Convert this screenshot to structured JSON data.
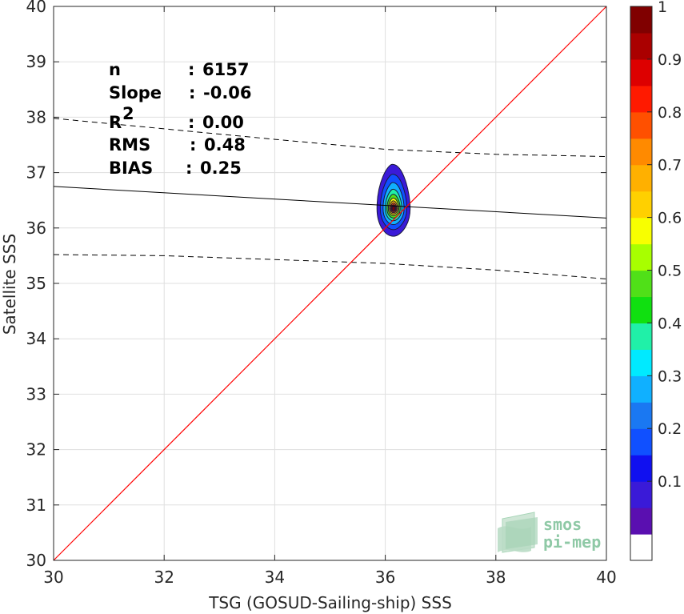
{
  "chart_data": {
    "type": "scatter",
    "subtype": "density-contour",
    "xlabel": "TSG (GOSUD-Sailing-ship) SSS",
    "ylabel": "Satellite SSS",
    "xlim": [
      30,
      40
    ],
    "ylim": [
      30,
      40
    ],
    "xticks": [
      "30",
      "32",
      "34",
      "36",
      "38",
      "40"
    ],
    "yticks": [
      "30",
      "31",
      "32",
      "33",
      "34",
      "35",
      "36",
      "37",
      "38",
      "39",
      "40"
    ],
    "grid": true,
    "stats": [
      {
        "label": "n",
        "sep": ": ",
        "value": "6157"
      },
      {
        "label": "Slope",
        "sep": ": ",
        "value": "-0.06"
      },
      {
        "label": "R",
        "sup": "2",
        "sep": ": ",
        "value": "0.00"
      },
      {
        "label": "RMS",
        "sep": ": ",
        "value": "0.48"
      },
      {
        "label": "BIAS",
        "sep": ": ",
        "value": "0.25"
      }
    ],
    "identity_line": {
      "color": "#ff0000",
      "points": [
        [
          30,
          30
        ],
        [
          40,
          40
        ]
      ]
    },
    "regression_line": {
      "color": "#000000",
      "points": [
        [
          30,
          36.75
        ],
        [
          40,
          36.18
        ]
      ]
    },
    "confidence_upper": {
      "style": "dashed",
      "points": [
        [
          30,
          37.98
        ],
        [
          32,
          37.79
        ],
        [
          34,
          37.6
        ],
        [
          36,
          37.42
        ],
        [
          38,
          37.33
        ],
        [
          40,
          37.29
        ]
      ]
    },
    "confidence_lower": {
      "style": "dashed",
      "points": [
        [
          30,
          35.52
        ],
        [
          32,
          35.5
        ],
        [
          34,
          35.43
        ],
        [
          36,
          35.36
        ],
        [
          38,
          35.24
        ],
        [
          40,
          35.08
        ]
      ]
    },
    "density_peak": {
      "x": 36.15,
      "y": 36.35
    },
    "contour_levels": [
      {
        "level": 0.05,
        "rx": 0.3,
        "ry_up": 0.8,
        "ry_down": 0.5
      },
      {
        "level": 0.15,
        "rx": 0.24,
        "ry_up": 0.62,
        "ry_down": 0.38
      },
      {
        "level": 0.25,
        "rx": 0.19,
        "ry_up": 0.47,
        "ry_down": 0.29
      },
      {
        "level": 0.35,
        "rx": 0.15,
        "ry_up": 0.35,
        "ry_down": 0.22
      },
      {
        "level": 0.45,
        "rx": 0.12,
        "ry_up": 0.26,
        "ry_down": 0.17
      },
      {
        "level": 0.55,
        "rx": 0.095,
        "ry_up": 0.19,
        "ry_down": 0.13
      },
      {
        "level": 0.65,
        "rx": 0.075,
        "ry_up": 0.14,
        "ry_down": 0.1
      },
      {
        "level": 0.75,
        "rx": 0.058,
        "ry_up": 0.1,
        "ry_down": 0.075
      },
      {
        "level": 0.85,
        "rx": 0.042,
        "ry_up": 0.07,
        "ry_down": 0.055
      },
      {
        "level": 0.95,
        "rx": 0.028,
        "ry_up": 0.045,
        "ry_down": 0.035
      }
    ],
    "colorbar": {
      "ticks": [
        "0.1",
        "0.2",
        "0.3",
        "0.4",
        "0.5",
        "0.6",
        "0.7",
        "0.8",
        "0.9",
        "1"
      ],
      "colors": [
        "#ffffff",
        "#5a0fb0",
        "#3a1ad8",
        "#1010f0",
        "#1050ff",
        "#1a78f2",
        "#10b0ff",
        "#00eaff",
        "#20f0a8",
        "#10e010",
        "#50e018",
        "#a8ff00",
        "#f8ff00",
        "#ffd000",
        "#ffb000",
        "#ff8a00",
        "#ff5000",
        "#ff1a00",
        "#dd0000",
        "#aa0000",
        "#800000"
      ]
    }
  },
  "logo": {
    "line1": "smos",
    "line2": "pi-mep"
  }
}
